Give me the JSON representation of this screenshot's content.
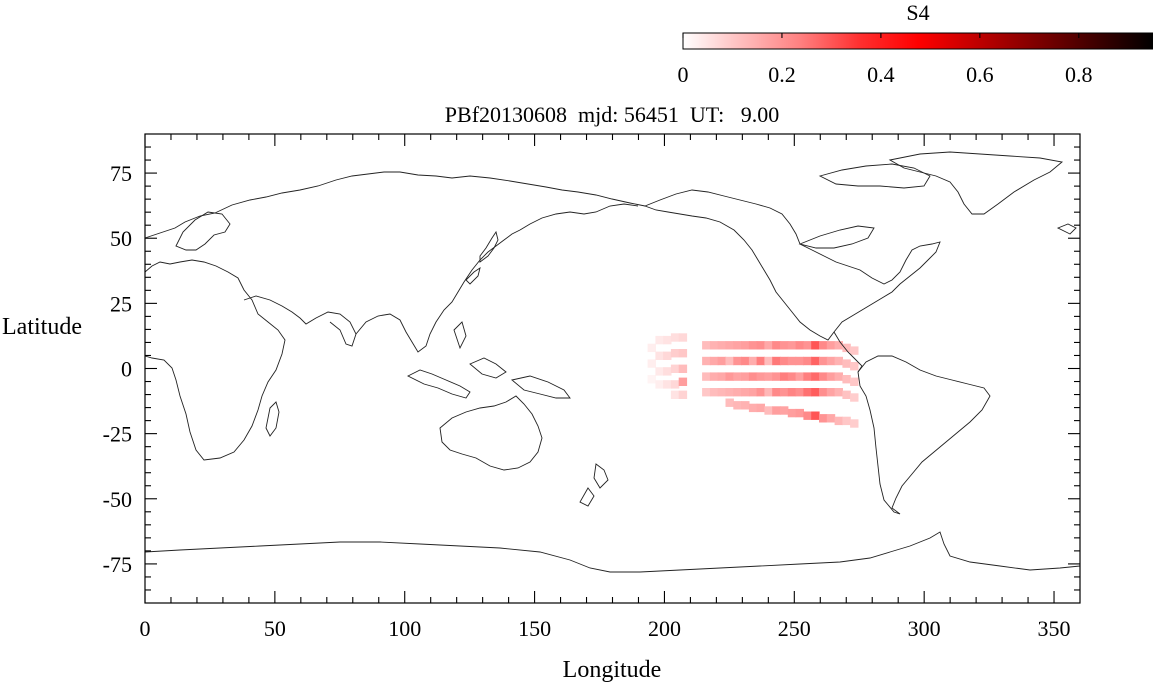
{
  "chart_data": {
    "type": "heatmap",
    "title": "PBf20130608  mjd: 56451  UT:   9.00",
    "xlabel": "Longitude",
    "ylabel": "Latitude",
    "xlim": [
      0,
      360
    ],
    "ylim": [
      -90,
      90
    ],
    "xticks": [
      0,
      50,
      100,
      150,
      200,
      250,
      300,
      350
    ],
    "yticks": [
      75,
      50,
      25,
      0,
      -25,
      -50,
      -75
    ],
    "xtick_labels": [
      "0",
      "50",
      "100",
      "150",
      "200",
      "250",
      "300",
      "350"
    ],
    "ytick_labels": [
      "75",
      "50",
      "25",
      "0",
      "-25",
      "-50",
      "-75"
    ],
    "colorbar": {
      "label": "S4",
      "range": [
        0,
        0.95
      ],
      "ticks": [
        0,
        0.2,
        0.4,
        0.6,
        0.8
      ],
      "tick_labels": [
        "0",
        "0.2",
        "0.4",
        "0.6",
        "0.8"
      ],
      "colors": [
        "#ffffff",
        "#ffbdbd",
        "#ff8080",
        "#ff3030",
        "#ff0000",
        "#c00000",
        "#800000",
        "#400000",
        "#000000"
      ]
    },
    "cell_size_deg": [
      3,
      3
    ],
    "cells": [
      {
        "lon": 195,
        "lat": 8,
        "s4": 0.03
      },
      {
        "lon": 195,
        "lat": 2,
        "s4": 0.03
      },
      {
        "lon": 195,
        "lat": -4,
        "s4": 0.02
      },
      {
        "lon": 198,
        "lat": 11,
        "s4": 0.04
      },
      {
        "lon": 198,
        "lat": 5,
        "s4": 0.05
      },
      {
        "lon": 198,
        "lat": -1,
        "s4": 0.04
      },
      {
        "lon": 198,
        "lat": -6,
        "s4": 0.03
      },
      {
        "lon": 201,
        "lat": 11,
        "s4": 0.05
      },
      {
        "lon": 201,
        "lat": 5,
        "s4": 0.07
      },
      {
        "lon": 201,
        "lat": -1,
        "s4": 0.06
      },
      {
        "lon": 201,
        "lat": -6,
        "s4": 0.05
      },
      {
        "lon": 204,
        "lat": 12,
        "s4": 0.06
      },
      {
        "lon": 204,
        "lat": 6,
        "s4": 0.09
      },
      {
        "lon": 204,
        "lat": 0,
        "s4": 0.08
      },
      {
        "lon": 204,
        "lat": -6,
        "s4": 0.07
      },
      {
        "lon": 204,
        "lat": -10,
        "s4": 0.05
      },
      {
        "lon": 207,
        "lat": 12,
        "s4": 0.07
      },
      {
        "lon": 207,
        "lat": 6,
        "s4": 0.1
      },
      {
        "lon": 207,
        "lat": 0,
        "s4": 0.12
      },
      {
        "lon": 207,
        "lat": -5,
        "s4": 0.18
      },
      {
        "lon": 207,
        "lat": -10,
        "s4": 0.08
      },
      {
        "lon": 216,
        "lat": 9,
        "s4": 0.12
      },
      {
        "lon": 216,
        "lat": 3,
        "s4": 0.14
      },
      {
        "lon": 216,
        "lat": -3,
        "s4": 0.12
      },
      {
        "lon": 216,
        "lat": -9,
        "s4": 0.1
      },
      {
        "lon": 219,
        "lat": 9,
        "s4": 0.14
      },
      {
        "lon": 219,
        "lat": 3,
        "s4": 0.16
      },
      {
        "lon": 219,
        "lat": -3,
        "s4": 0.15
      },
      {
        "lon": 219,
        "lat": -9,
        "s4": 0.12
      },
      {
        "lon": 222,
        "lat": 9,
        "s4": 0.15
      },
      {
        "lon": 222,
        "lat": 3,
        "s4": 0.18
      },
      {
        "lon": 222,
        "lat": -3,
        "s4": 0.16
      },
      {
        "lon": 222,
        "lat": -9,
        "s4": 0.13
      },
      {
        "lon": 225,
        "lat": 9,
        "s4": 0.16
      },
      {
        "lon": 225,
        "lat": 3,
        "s4": 0.12
      },
      {
        "lon": 225,
        "lat": -3,
        "s4": 0.19
      },
      {
        "lon": 225,
        "lat": -9,
        "s4": 0.14
      },
      {
        "lon": 225,
        "lat": -13,
        "s4": 0.12
      },
      {
        "lon": 228,
        "lat": 9,
        "s4": 0.17
      },
      {
        "lon": 228,
        "lat": 3,
        "s4": 0.2
      },
      {
        "lon": 228,
        "lat": -3,
        "s4": 0.17
      },
      {
        "lon": 228,
        "lat": -9,
        "s4": 0.15
      },
      {
        "lon": 228,
        "lat": -14,
        "s4": 0.13
      },
      {
        "lon": 231,
        "lat": 9,
        "s4": 0.18
      },
      {
        "lon": 231,
        "lat": 3,
        "s4": 0.22
      },
      {
        "lon": 231,
        "lat": -3,
        "s4": 0.18
      },
      {
        "lon": 231,
        "lat": -9,
        "s4": 0.16
      },
      {
        "lon": 231,
        "lat": -14,
        "s4": 0.14
      },
      {
        "lon": 234,
        "lat": 9,
        "s4": 0.2
      },
      {
        "lon": 234,
        "lat": 3,
        "s4": 0.15
      },
      {
        "lon": 234,
        "lat": -3,
        "s4": 0.21
      },
      {
        "lon": 234,
        "lat": -9,
        "s4": 0.17
      },
      {
        "lon": 234,
        "lat": -15,
        "s4": 0.15
      },
      {
        "lon": 237,
        "lat": 9,
        "s4": 0.21
      },
      {
        "lon": 237,
        "lat": 3,
        "s4": 0.24
      },
      {
        "lon": 237,
        "lat": -3,
        "s4": 0.19
      },
      {
        "lon": 237,
        "lat": -9,
        "s4": 0.2
      },
      {
        "lon": 237,
        "lat": -15,
        "s4": 0.16
      },
      {
        "lon": 240,
        "lat": 9,
        "s4": 0.16
      },
      {
        "lon": 240,
        "lat": 3,
        "s4": 0.12
      },
      {
        "lon": 240,
        "lat": -3,
        "s4": 0.18
      },
      {
        "lon": 240,
        "lat": -9,
        "s4": 0.13
      },
      {
        "lon": 240,
        "lat": -16,
        "s4": 0.12
      },
      {
        "lon": 243,
        "lat": 9,
        "s4": 0.22
      },
      {
        "lon": 243,
        "lat": 3,
        "s4": 0.25
      },
      {
        "lon": 243,
        "lat": -3,
        "s4": 0.2
      },
      {
        "lon": 243,
        "lat": -9,
        "s4": 0.22
      },
      {
        "lon": 243,
        "lat": -16,
        "s4": 0.18
      },
      {
        "lon": 246,
        "lat": 9,
        "s4": 0.2
      },
      {
        "lon": 246,
        "lat": 3,
        "s4": 0.22
      },
      {
        "lon": 246,
        "lat": -3,
        "s4": 0.24
      },
      {
        "lon": 246,
        "lat": -9,
        "s4": 0.2
      },
      {
        "lon": 246,
        "lat": -16,
        "s4": 0.17
      },
      {
        "lon": 249,
        "lat": 9,
        "s4": 0.19
      },
      {
        "lon": 249,
        "lat": 3,
        "s4": 0.2
      },
      {
        "lon": 249,
        "lat": -3,
        "s4": 0.22
      },
      {
        "lon": 249,
        "lat": -9,
        "s4": 0.23
      },
      {
        "lon": 249,
        "lat": -17,
        "s4": 0.18
      },
      {
        "lon": 252,
        "lat": 9,
        "s4": 0.22
      },
      {
        "lon": 252,
        "lat": 3,
        "s4": 0.2
      },
      {
        "lon": 252,
        "lat": -3,
        "s4": 0.18
      },
      {
        "lon": 252,
        "lat": -9,
        "s4": 0.21
      },
      {
        "lon": 252,
        "lat": -17,
        "s4": 0.19
      },
      {
        "lon": 255,
        "lat": 9,
        "s4": 0.2
      },
      {
        "lon": 255,
        "lat": 3,
        "s4": 0.22
      },
      {
        "lon": 255,
        "lat": -3,
        "s4": 0.24
      },
      {
        "lon": 255,
        "lat": -9,
        "s4": 0.26
      },
      {
        "lon": 255,
        "lat": -18,
        "s4": 0.22
      },
      {
        "lon": 258,
        "lat": 9,
        "s4": 0.3
      },
      {
        "lon": 258,
        "lat": 3,
        "s4": 0.28
      },
      {
        "lon": 258,
        "lat": -3,
        "s4": 0.27
      },
      {
        "lon": 258,
        "lat": -9,
        "s4": 0.29
      },
      {
        "lon": 258,
        "lat": -18,
        "s4": 0.3
      },
      {
        "lon": 261,
        "lat": 9,
        "s4": 0.22
      },
      {
        "lon": 261,
        "lat": 3,
        "s4": 0.2
      },
      {
        "lon": 261,
        "lat": -3,
        "s4": 0.22
      },
      {
        "lon": 261,
        "lat": -9,
        "s4": 0.21
      },
      {
        "lon": 261,
        "lat": -19,
        "s4": 0.2
      },
      {
        "lon": 264,
        "lat": 9,
        "s4": 0.18
      },
      {
        "lon": 264,
        "lat": 3,
        "s4": 0.17
      },
      {
        "lon": 264,
        "lat": -3,
        "s4": 0.18
      },
      {
        "lon": 264,
        "lat": -9,
        "s4": 0.17
      },
      {
        "lon": 264,
        "lat": -19,
        "s4": 0.16
      },
      {
        "lon": 267,
        "lat": 9,
        "s4": 0.15
      },
      {
        "lon": 267,
        "lat": 3,
        "s4": 0.14
      },
      {
        "lon": 267,
        "lat": -3,
        "s4": 0.15
      },
      {
        "lon": 267,
        "lat": -9,
        "s4": 0.14
      },
      {
        "lon": 267,
        "lat": -20,
        "s4": 0.13
      },
      {
        "lon": 270,
        "lat": 8,
        "s4": 0.12
      },
      {
        "lon": 270,
        "lat": 2,
        "s4": 0.12
      },
      {
        "lon": 270,
        "lat": -4,
        "s4": 0.12
      },
      {
        "lon": 270,
        "lat": -10,
        "s4": 0.11
      },
      {
        "lon": 270,
        "lat": -20,
        "s4": 0.1
      },
      {
        "lon": 273,
        "lat": 7,
        "s4": 0.1
      },
      {
        "lon": 273,
        "lat": 1,
        "s4": 0.1
      },
      {
        "lon": 273,
        "lat": -5,
        "s4": 0.1
      },
      {
        "lon": 273,
        "lat": -11,
        "s4": 0.09
      },
      {
        "lon": 273,
        "lat": -21,
        "s4": 0.09
      }
    ]
  }
}
